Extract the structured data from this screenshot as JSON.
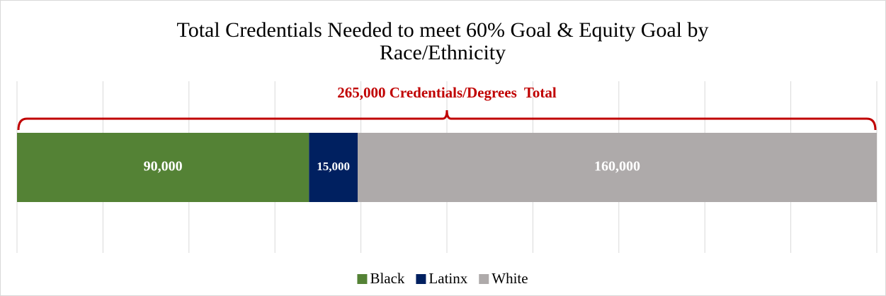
{
  "chart_data": {
    "type": "stacked-bar-horizontal",
    "title": "Total Credentials Needed to meet 60% Goal & Equity Goal by Race/Ethnicity",
    "annotation": "265,000 Credentials/Degrees  Total",
    "categories": [
      null
    ],
    "series": [
      {
        "name": "Black",
        "color": "#548235",
        "values": [
          90000
        ],
        "value_labels": [
          "90,000"
        ]
      },
      {
        "name": "Latinx",
        "color": "#002060",
        "values": [
          15000
        ],
        "value_labels": [
          "15,000"
        ]
      },
      {
        "name": "White",
        "color": "#aeaaaa",
        "values": [
          160000
        ],
        "value_labels": [
          "160,000"
        ]
      }
    ],
    "xlim": [
      0,
      265000
    ],
    "xticks": [
      0,
      26500,
      53000,
      79500,
      106000,
      132500,
      159000,
      185500,
      212000,
      238500,
      265000
    ],
    "grid": true,
    "legend": "bottom"
  }
}
